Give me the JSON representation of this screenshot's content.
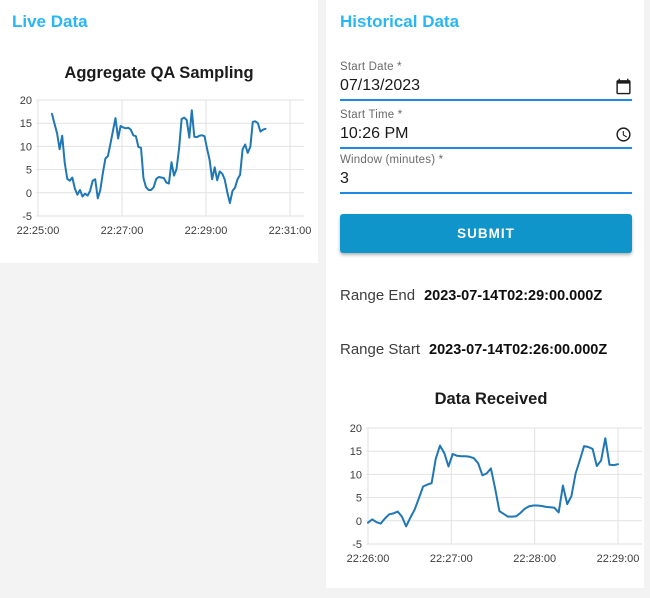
{
  "colors": {
    "panel_title": "#29b6f6",
    "submit_bg": "#0f95c9",
    "input_underline": "#1e88e5",
    "chart_line": "#1f77b4",
    "page_bg": "#f3f3f3"
  },
  "icons": {
    "date_picker": "calendar-icon",
    "time_picker": "clock-icon"
  },
  "live_panel": {
    "title": "Live Data"
  },
  "historical_panel": {
    "title": "Historical Data",
    "form": {
      "start_date": {
        "label": "Start Date *",
        "value": "07/13/2023"
      },
      "start_time": {
        "label": "Start Time *",
        "value": "10:26 PM"
      },
      "window": {
        "label": "Window (minutes) *",
        "value": "3"
      },
      "submit_label": "SUBMIT"
    },
    "range_end": {
      "label": "Range End",
      "value": "2023-07-14T02:29:00.000Z"
    },
    "range_start": {
      "label": "Range Start",
      "value": "2023-07-14T02:26:00.000Z"
    }
  },
  "chart_data": [
    {
      "type": "line",
      "title": "Aggregate QA Sampling",
      "xlabel": "",
      "ylabel": "",
      "grid": true,
      "legend": "none",
      "x_axis": {
        "range_seconds": [
          0,
          360
        ],
        "ticks_seconds": [
          0,
          120,
          240,
          360
        ],
        "tick_labels": [
          "22:25:00",
          "22:27:00",
          "22:29:00",
          "22:31:00"
        ]
      },
      "y_axis": {
        "range": [
          -5,
          20
        ],
        "ticks": [
          -5,
          0,
          5,
          10,
          15,
          20
        ]
      },
      "series": [
        {
          "name": "aggregate-qa-sampling",
          "color": "#1f77b4",
          "x_start_seconds": 20,
          "x_end_seconds": 325,
          "values": [
            17,
            14.9,
            12.8,
            9.4,
            12.3,
            6.5,
            3,
            2.6,
            3.3,
            0.9,
            -0.4,
            0.6,
            -0.8,
            -0.2,
            -0.6,
            0.4,
            2.6,
            2.9,
            -1.2,
            0.6,
            4.2,
            7.4,
            7.9,
            10.6,
            13.4,
            16.1,
            11.7,
            14.4,
            14.1,
            13.9,
            14,
            13.6,
            12.4,
            12.2,
            9.9,
            9.7,
            3.1,
            1.2,
            0.6,
            0.6,
            1.2,
            3,
            3.4,
            3.3,
            3.2,
            2.2,
            2,
            6.6,
            3.7,
            5.1,
            9.6,
            15.9,
            16.2,
            15.7,
            11.9,
            17.8,
            12.1,
            12,
            12.3,
            12.4,
            12.2,
            9.6,
            7.1,
            2.9,
            5.5,
            2.7,
            4.6,
            4.1,
            2.8,
            0,
            -2.2,
            0.4,
            1.1,
            2.9,
            3.9,
            9.4,
            10.4,
            8.6,
            9.9,
            15.3,
            15.4,
            15,
            13.2,
            13.6,
            13.8
          ]
        }
      ]
    },
    {
      "type": "line",
      "title": "Data Received",
      "xlabel": "",
      "ylabel": "",
      "grid": true,
      "legend": "none",
      "x_axis": {
        "range_seconds": [
          0,
          180
        ],
        "ticks_seconds": [
          0,
          60,
          120,
          180
        ],
        "tick_labels": [
          "22:26:00",
          "22:27:00",
          "22:28:00",
          "22:29:00"
        ]
      },
      "y_axis": {
        "range": [
          -5,
          20
        ],
        "ticks": [
          -5,
          0,
          5,
          10,
          15,
          20
        ]
      },
      "series": [
        {
          "name": "data-received",
          "color": "#1f77b4",
          "x_start_seconds": 0,
          "x_end_seconds": 180,
          "values": [
            -0.4,
            0.3,
            -0.3,
            -0.6,
            0.5,
            1.4,
            1.6,
            2,
            0.9,
            -1.2,
            0.7,
            2.4,
            4.8,
            7.4,
            7.8,
            8.1,
            13.4,
            16.2,
            14.6,
            11.7,
            14.4,
            14,
            13.9,
            13.9,
            13.8,
            13.5,
            12.4,
            9.8,
            10.2,
            11.3,
            7,
            2.1,
            1.5,
            0.9,
            0.9,
            1,
            1.7,
            2.6,
            3.1,
            3.3,
            3.3,
            3.2,
            3,
            2.9,
            2.8,
            1.8,
            7.6,
            3.6,
            5.3,
            10.2,
            13.1,
            16.1,
            15.9,
            15.5,
            11.8,
            13,
            17.8,
            12.1,
            12,
            12.2
          ]
        }
      ]
    }
  ]
}
